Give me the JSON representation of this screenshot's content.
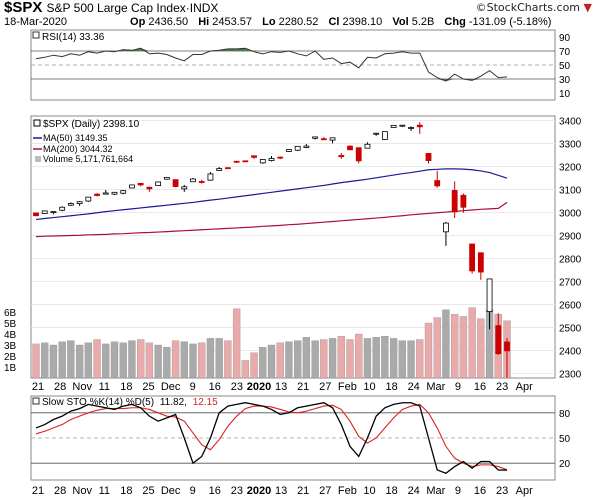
{
  "header": {
    "symbol": "$SPX",
    "name": "S&P 500 Large Cap Index",
    "exchange": "INDX",
    "date": "18-Mar-2020",
    "open_label": "Op",
    "open": "2436.50",
    "high_label": "Hi",
    "high": "2453.57",
    "low_label": "Lo",
    "low": "2280.52",
    "close_label": "Cl",
    "close": "2398.10",
    "vol_label": "Vol",
    "vol": "5.2B",
    "chg_label": "Chg",
    "chg": "-131.09 (-5.18%)",
    "watermark": "©StockCharts.com",
    "down_arrow": "▼"
  },
  "rsi_panel": {
    "legend": "RSI(14) 33.36",
    "y_ticks": [
      "90",
      "70",
      "50",
      "30",
      "10"
    ]
  },
  "price_panel": {
    "legend_price": "$SPX (Daily) 2398.10",
    "legend_ma50": "MA(50) 3149.35",
    "legend_ma200": "MA(200) 3044.32",
    "legend_vol": "Volume 5,171,761,664",
    "y_ticks": [
      "3400",
      "3300",
      "3200",
      "3100",
      "3000",
      "2900",
      "2800",
      "2700",
      "2600",
      "2500",
      "2400",
      "2300"
    ],
    "vol_ticks": [
      "6B",
      "5B",
      "4B",
      "3B",
      "2B",
      "1B"
    ]
  },
  "sto_panel": {
    "legend_a": "Slow STO %K(14) %D(5)",
    "legend_k": "11.82,",
    "legend_d": "12.15",
    "y_ticks": [
      "80",
      "50",
      "20"
    ]
  },
  "x_axis_labels": [
    "21",
    "28",
    "Nov",
    "11",
    "18",
    "25",
    "Dec",
    "9",
    "16",
    "23",
    "2020",
    "13",
    "21",
    "27",
    "Feb",
    "10",
    "18",
    "24",
    "Mar",
    "9",
    "16",
    "23",
    "Apr"
  ],
  "colors": {
    "up": "#000000",
    "down": "#cc0000",
    "ma50": "#1a1a99",
    "ma200": "#aa1133",
    "vol_up": "#aaaaaa",
    "vol_down": "#e8aaaa",
    "rsi_fill_high": "#4a7a4a",
    "rsi_fill_low": "#8a4a4a"
  },
  "chart_data": [
    {
      "type": "line",
      "title": "RSI(14)",
      "y_range": [
        0,
        100
      ],
      "reference_lines": [
        70,
        50,
        30
      ],
      "x_dates": [
        "2019-10-18",
        "2019-10-21",
        "2019-10-23",
        "2019-10-25",
        "2019-10-28",
        "2019-10-30",
        "2019-11-01",
        "2019-11-05",
        "2019-11-07",
        "2019-11-11",
        "2019-11-13",
        "2019-11-15",
        "2019-11-19",
        "2019-11-21",
        "2019-11-25",
        "2019-11-27",
        "2019-12-02",
        "2019-12-04",
        "2019-12-06",
        "2019-12-10",
        "2019-12-12",
        "2019-12-16",
        "2019-12-18",
        "2019-12-20",
        "2019-12-24",
        "2019-12-27",
        "2019-12-31",
        "2020-01-03",
        "2020-01-07",
        "2020-01-09",
        "2020-01-13",
        "2020-01-15",
        "2020-01-17",
        "2020-01-21",
        "2020-01-23",
        "2020-01-27",
        "2020-01-29",
        "2020-01-31",
        "2020-02-04",
        "2020-02-06",
        "2020-02-10",
        "2020-02-12",
        "2020-02-14",
        "2020-02-18",
        "2020-02-20",
        "2020-02-24",
        "2020-02-26",
        "2020-02-28",
        "2020-03-03",
        "2020-03-05",
        "2020-03-09",
        "2020-03-11",
        "2020-03-13",
        "2020-03-16",
        "2020-03-18"
      ],
      "values": [
        59,
        61,
        64,
        62,
        66,
        64,
        69,
        67,
        70,
        69,
        72,
        71,
        74,
        66,
        67,
        65,
        60,
        56,
        65,
        65,
        70,
        71,
        73,
        73,
        74,
        69,
        66,
        69,
        68,
        70,
        66,
        63,
        70,
        58,
        60,
        52,
        54,
        46,
        61,
        60,
        66,
        67,
        69,
        67,
        67,
        40,
        32,
        27,
        37,
        30,
        28,
        34,
        42,
        32,
        33
      ]
    },
    {
      "type": "candlestick",
      "title": "$SPX (Daily) 2398.10",
      "y_range": [
        2280,
        3420
      ],
      "series": [
        {
          "name": "MA(50) 3149.35"
        },
        {
          "name": "MA(200) 3044.32"
        },
        {
          "name": "Volume 5,171,761,664"
        }
      ],
      "ohlc": [
        {
          "date": "2019-10-18",
          "o": 2998,
          "h": 3000,
          "l": 2984,
          "c": 2986
        },
        {
          "date": "2019-10-21",
          "o": 2996,
          "h": 3008,
          "l": 2994,
          "c": 3007
        },
        {
          "date": "2019-10-23",
          "o": 3000,
          "h": 3005,
          "l": 2992,
          "c": 3004
        },
        {
          "date": "2019-10-25",
          "o": 3010,
          "h": 3027,
          "l": 3006,
          "c": 3023
        },
        {
          "date": "2019-10-28",
          "o": 3032,
          "h": 3044,
          "l": 3028,
          "c": 3039
        },
        {
          "date": "2019-10-30",
          "o": 3039,
          "h": 3050,
          "l": 3029,
          "c": 3047
        },
        {
          "date": "2019-11-01",
          "o": 3050,
          "h": 3067,
          "l": 3046,
          "c": 3067
        },
        {
          "date": "2019-11-05",
          "o": 3080,
          "h": 3084,
          "l": 3070,
          "c": 3074
        },
        {
          "date": "2019-11-07",
          "o": 3080,
          "h": 3098,
          "l": 3078,
          "c": 3085
        },
        {
          "date": "2019-11-11",
          "o": 3080,
          "h": 3088,
          "l": 3076,
          "c": 3088
        },
        {
          "date": "2019-11-13",
          "o": 3084,
          "h": 3098,
          "l": 3079,
          "c": 3095
        },
        {
          "date": "2019-11-15",
          "o": 3107,
          "h": 3121,
          "l": 3105,
          "c": 3120
        },
        {
          "date": "2019-11-19",
          "o": 3127,
          "h": 3127,
          "l": 3114,
          "c": 3120
        },
        {
          "date": "2019-11-21",
          "o": 3110,
          "h": 3113,
          "l": 3090,
          "c": 3103
        },
        {
          "date": "2019-11-25",
          "o": 3117,
          "h": 3134,
          "l": 3117,
          "c": 3133
        },
        {
          "date": "2019-11-27",
          "o": 3145,
          "h": 3154,
          "l": 3143,
          "c": 3153
        },
        {
          "date": "2019-12-02",
          "o": 3143,
          "h": 3144,
          "l": 3110,
          "c": 3113
        },
        {
          "date": "2019-12-04",
          "o": 3103,
          "h": 3120,
          "l": 3090,
          "c": 3112
        },
        {
          "date": "2019-12-06",
          "o": 3134,
          "h": 3150,
          "l": 3134,
          "c": 3146
        },
        {
          "date": "2019-12-10",
          "o": 3135,
          "h": 3143,
          "l": 3126,
          "c": 3132
        },
        {
          "date": "2019-12-12",
          "o": 3141,
          "h": 3176,
          "l": 3138,
          "c": 3168
        },
        {
          "date": "2019-12-16",
          "o": 3183,
          "h": 3198,
          "l": 3183,
          "c": 3191
        },
        {
          "date": "2019-12-18",
          "o": 3195,
          "h": 3198,
          "l": 3191,
          "c": 3192
        },
        {
          "date": "2019-12-20",
          "o": 3223,
          "h": 3225,
          "l": 3216,
          "c": 3221
        },
        {
          "date": "2019-12-24",
          "o": 3225,
          "h": 3226,
          "l": 3220,
          "c": 3223
        },
        {
          "date": "2019-12-27",
          "o": 3247,
          "h": 3247,
          "l": 3234,
          "c": 3240
        },
        {
          "date": "2019-12-31",
          "o": 3216,
          "h": 3231,
          "l": 3212,
          "c": 3231
        },
        {
          "date": "2020-01-03",
          "o": 3226,
          "h": 3246,
          "l": 3222,
          "c": 3235
        },
        {
          "date": "2020-01-07",
          "o": 3241,
          "h": 3244,
          "l": 3232,
          "c": 3237
        },
        {
          "date": "2020-01-09",
          "o": 3266,
          "h": 3275,
          "l": 3263,
          "c": 3274
        },
        {
          "date": "2020-01-13",
          "o": 3271,
          "h": 3288,
          "l": 3268,
          "c": 3288
        },
        {
          "date": "2020-01-15",
          "o": 3283,
          "h": 3298,
          "l": 3280,
          "c": 3289
        },
        {
          "date": "2020-01-17",
          "o": 3323,
          "h": 3329,
          "l": 3318,
          "c": 3329
        },
        {
          "date": "2020-01-21",
          "o": 3321,
          "h": 3329,
          "l": 3316,
          "c": 3320
        },
        {
          "date": "2020-01-23",
          "o": 3315,
          "h": 3326,
          "l": 3301,
          "c": 3325
        },
        {
          "date": "2020-01-27",
          "o": 3248,
          "h": 3259,
          "l": 3234,
          "c": 3243
        },
        {
          "date": "2020-01-29",
          "o": 3289,
          "h": 3293,
          "l": 3271,
          "c": 3273
        },
        {
          "date": "2020-01-31",
          "o": 3282,
          "h": 3282,
          "l": 3214,
          "c": 3225
        },
        {
          "date": "2020-02-04",
          "o": 3280,
          "h": 3306,
          "l": 3280,
          "c": 3297
        },
        {
          "date": "2020-02-06",
          "o": 3344,
          "h": 3347,
          "l": 3334,
          "c": 3345
        },
        {
          "date": "2020-02-10",
          "o": 3318,
          "h": 3352,
          "l": 3317,
          "c": 3352
        },
        {
          "date": "2020-02-12",
          "o": 3370,
          "h": 3381,
          "l": 3369,
          "c": 3379
        },
        {
          "date": "2020-02-14",
          "o": 3378,
          "h": 3380,
          "l": 3372,
          "c": 3380
        },
        {
          "date": "2020-02-18",
          "o": 3370,
          "h": 3375,
          "l": 3355,
          "c": 3370
        },
        {
          "date": "2020-02-20",
          "o": 3380,
          "h": 3393,
          "l": 3342,
          "c": 3373
        },
        {
          "date": "2020-02-24",
          "o": 3257,
          "h": 3259,
          "l": 3214,
          "c": 3226
        },
        {
          "date": "2020-02-26",
          "o": 3139,
          "h": 3182,
          "l": 3108,
          "c": 3116
        },
        {
          "date": "2020-02-28",
          "o": 2916,
          "h": 2959,
          "l": 2855,
          "c": 2954
        },
        {
          "date": "2020-03-03",
          "o": 3096,
          "h": 3136,
          "l": 2976,
          "c": 3003
        },
        {
          "date": "2020-03-05",
          "o": 3075,
          "h": 3083,
          "l": 2999,
          "c": 3023
        },
        {
          "date": "2020-03-09",
          "o": 2863,
          "h": 2863,
          "l": 2734,
          "c": 2746
        },
        {
          "date": "2020-03-11",
          "o": 2825,
          "h": 2825,
          "l": 2707,
          "c": 2741
        },
        {
          "date": "2020-03-13",
          "o": 2569,
          "h": 2711,
          "l": 2492,
          "c": 2711
        },
        {
          "date": "2020-03-16",
          "o": 2508,
          "h": 2562,
          "l": 2380,
          "c": 2386
        },
        {
          "date": "2020-03-18",
          "o": 2436.5,
          "h": 2453.57,
          "l": 2280.52,
          "c": 2398.1
        }
      ],
      "ma50": [
        2970,
        2974,
        2978,
        2982,
        2986,
        2990,
        2994,
        2999,
        3004,
        3008,
        3012,
        3016,
        3020,
        3024,
        3028,
        3032,
        3036,
        3040,
        3044,
        3049,
        3054,
        3058,
        3063,
        3068,
        3073,
        3078,
        3083,
        3088,
        3093,
        3098,
        3103,
        3108,
        3113,
        3118,
        3124,
        3130,
        3135,
        3140,
        3145,
        3151,
        3157,
        3163,
        3169,
        3174,
        3180,
        3186,
        3188,
        3190,
        3190,
        3189,
        3186,
        3181,
        3174,
        3162,
        3149.35
      ],
      "ma200": [
        2895,
        2897,
        2898,
        2899,
        2900,
        2901,
        2903,
        2904,
        2905,
        2907,
        2908,
        2910,
        2912,
        2913,
        2915,
        2917,
        2919,
        2921,
        2923,
        2925,
        2927,
        2929,
        2931,
        2933,
        2935,
        2937,
        2940,
        2942,
        2944,
        2947,
        2949,
        2952,
        2955,
        2958,
        2961,
        2964,
        2967,
        2970,
        2973,
        2976,
        2979,
        2983,
        2986,
        2990,
        2993,
        2996,
        2999,
        3002,
        3005,
        3008,
        3011,
        3014,
        3016,
        3018,
        3044.32
      ],
      "volume_billions": [
        3.1,
        3.2,
        3.0,
        3.3,
        3.4,
        3.0,
        3.2,
        3.5,
        3.1,
        3.3,
        3.2,
        3.4,
        3.5,
        3.2,
        3.0,
        2.8,
        3.4,
        3.3,
        3.1,
        3.2,
        3.6,
        3.6,
        3.4,
        6.3,
        1.6,
        2.3,
        2.8,
        3.0,
        3.2,
        3.3,
        3.4,
        3.7,
        3.4,
        3.5,
        3.6,
        3.8,
        3.5,
        4.0,
        3.6,
        3.7,
        3.8,
        3.6,
        3.4,
        3.4,
        3.5,
        5.0,
        5.5,
        6.2,
        5.8,
        5.6,
        6.4,
        5.4,
        6.2,
        5.8,
        5.2
      ]
    },
    {
      "type": "line",
      "title": "Slow STO %K(14) %D(5)",
      "y_range": [
        0,
        100
      ],
      "reference_lines": [
        80,
        50,
        20
      ],
      "series": [
        {
          "name": "%K",
          "values": [
            62,
            66,
            72,
            76,
            82,
            85,
            90,
            88,
            86,
            84,
            88,
            90,
            86,
            76,
            70,
            74,
            78,
            50,
            20,
            28,
            50,
            80,
            88,
            90,
            92,
            90,
            88,
            84,
            78,
            80,
            86,
            88,
            90,
            92,
            86,
            66,
            40,
            28,
            50,
            76,
            86,
            90,
            92,
            92,
            88,
            50,
            12,
            8,
            16,
            22,
            14,
            22,
            22,
            12,
            11.82
          ]
        },
        {
          "name": "%D",
          "values": [
            55,
            58,
            62,
            66,
            72,
            76,
            80,
            83,
            85,
            85,
            85,
            86,
            86,
            84,
            80,
            76,
            75,
            70,
            56,
            42,
            36,
            48,
            64,
            76,
            85,
            88,
            88,
            87,
            84,
            81,
            80,
            82,
            85,
            88,
            89,
            84,
            70,
            52,
            44,
            50,
            62,
            74,
            84,
            88,
            90,
            80,
            62,
            40,
            26,
            20,
            16,
            18,
            18,
            16,
            12.15
          ]
        }
      ]
    }
  ]
}
